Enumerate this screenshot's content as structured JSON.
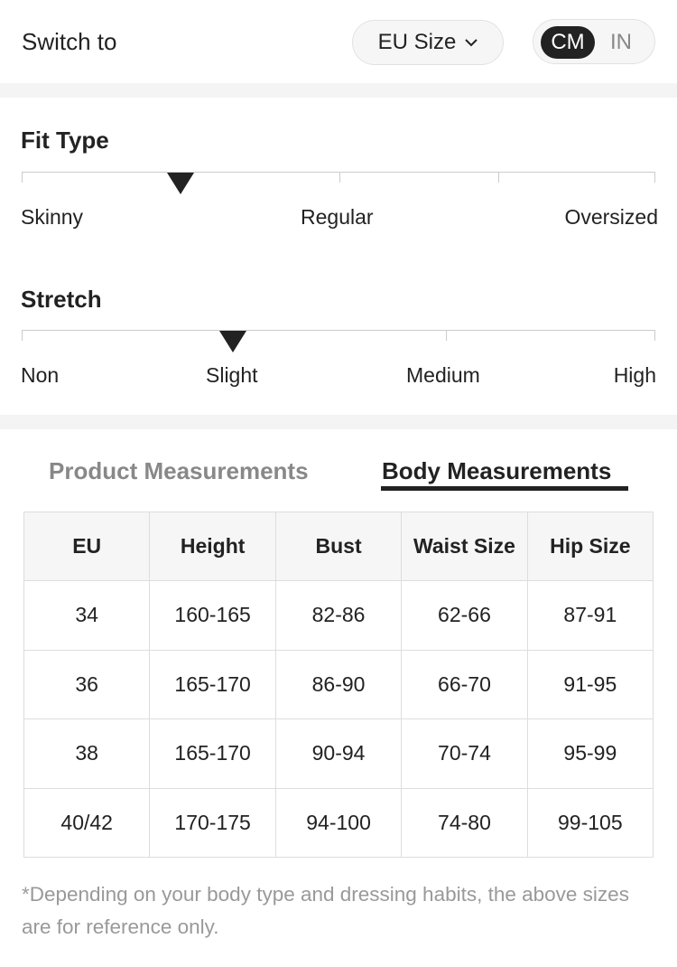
{
  "header": {
    "switch_label": "Switch to",
    "size_system": "EU Size",
    "size_icon": "chevron-down-icon",
    "units": [
      "CM",
      "IN"
    ],
    "selected_unit": "CM"
  },
  "fit_type": {
    "title": "Fit Type",
    "labels": [
      "Skinny",
      "Regular",
      "Oversized"
    ],
    "marker_fraction": 0.25
  },
  "stretch": {
    "title": "Stretch",
    "labels": [
      "Non",
      "Slight",
      "Medium",
      "High"
    ],
    "marker_fraction": 0.333
  },
  "tabs": [
    {
      "label": "Product Measurements",
      "active": false
    },
    {
      "label": "Body Measurements",
      "active": true
    }
  ],
  "table": {
    "headers": [
      "EU",
      "Height",
      "Bust",
      "Waist Size",
      "Hip Size"
    ],
    "rows": [
      [
        "34",
        "160-165",
        "82-86",
        "62-66",
        "87-91"
      ],
      [
        "36",
        "165-170",
        "86-90",
        "66-70",
        "91-95"
      ],
      [
        "38",
        "165-170",
        "90-94",
        "70-74",
        "95-99"
      ],
      [
        "40/42",
        "170-175",
        "94-100",
        "74-80",
        "99-105"
      ]
    ]
  },
  "note": "*Depending on your body type and dressing habits, the above sizes are for reference only."
}
